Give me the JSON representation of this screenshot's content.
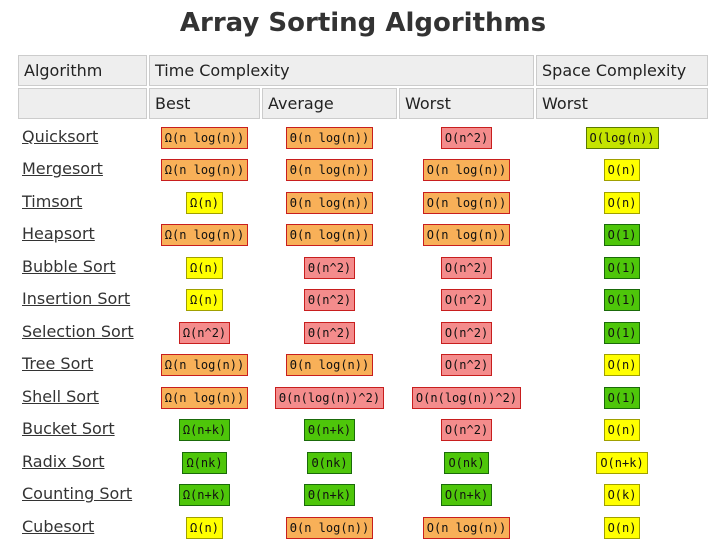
{
  "title": "Array Sorting Algorithms",
  "header": {
    "algorithm": "Algorithm",
    "time": "Time Complexity",
    "space": "Space Complexity",
    "sub": [
      "Best",
      "Average",
      "Worst",
      "Worst"
    ]
  },
  "rows": [
    {
      "name": "Quicksort",
      "cells": [
        {
          "text": "Ω(n log(n))",
          "color": "orange"
        },
        {
          "text": "Θ(n log(n))",
          "color": "orange"
        },
        {
          "text": "O(n^2)",
          "color": "red"
        },
        {
          "text": "O(log(n))",
          "color": "lime"
        }
      ]
    },
    {
      "name": "Mergesort",
      "cells": [
        {
          "text": "Ω(n log(n))",
          "color": "orange"
        },
        {
          "text": "Θ(n log(n))",
          "color": "orange"
        },
        {
          "text": "O(n log(n))",
          "color": "orange"
        },
        {
          "text": "O(n)",
          "color": "yellow"
        }
      ]
    },
    {
      "name": "Timsort",
      "cells": [
        {
          "text": "Ω(n)",
          "color": "yellow"
        },
        {
          "text": "Θ(n log(n))",
          "color": "orange"
        },
        {
          "text": "O(n log(n))",
          "color": "orange"
        },
        {
          "text": "O(n)",
          "color": "yellow"
        }
      ]
    },
    {
      "name": "Heapsort",
      "cells": [
        {
          "text": "Ω(n log(n))",
          "color": "orange"
        },
        {
          "text": "Θ(n log(n))",
          "color": "orange"
        },
        {
          "text": "O(n log(n))",
          "color": "orange"
        },
        {
          "text": "O(1)",
          "color": "green"
        }
      ]
    },
    {
      "name": "Bubble Sort",
      "cells": [
        {
          "text": "Ω(n)",
          "color": "yellow"
        },
        {
          "text": "Θ(n^2)",
          "color": "red"
        },
        {
          "text": "O(n^2)",
          "color": "red"
        },
        {
          "text": "O(1)",
          "color": "green"
        }
      ]
    },
    {
      "name": "Insertion Sort",
      "cells": [
        {
          "text": "Ω(n)",
          "color": "yellow"
        },
        {
          "text": "Θ(n^2)",
          "color": "red"
        },
        {
          "text": "O(n^2)",
          "color": "red"
        },
        {
          "text": "O(1)",
          "color": "green"
        }
      ]
    },
    {
      "name": "Selection Sort",
      "cells": [
        {
          "text": "Ω(n^2)",
          "color": "red"
        },
        {
          "text": "Θ(n^2)",
          "color": "red"
        },
        {
          "text": "O(n^2)",
          "color": "red"
        },
        {
          "text": "O(1)",
          "color": "green"
        }
      ]
    },
    {
      "name": "Tree Sort",
      "cells": [
        {
          "text": "Ω(n log(n))",
          "color": "orange"
        },
        {
          "text": "Θ(n log(n))",
          "color": "orange"
        },
        {
          "text": "O(n^2)",
          "color": "red"
        },
        {
          "text": "O(n)",
          "color": "yellow"
        }
      ]
    },
    {
      "name": "Shell Sort",
      "cells": [
        {
          "text": "Ω(n log(n))",
          "color": "orange"
        },
        {
          "text": "Θ(n(log(n))^2)",
          "color": "red"
        },
        {
          "text": "O(n(log(n))^2)",
          "color": "red"
        },
        {
          "text": "O(1)",
          "color": "green"
        }
      ]
    },
    {
      "name": "Bucket Sort",
      "cells": [
        {
          "text": "Ω(n+k)",
          "color": "green"
        },
        {
          "text": "Θ(n+k)",
          "color": "green"
        },
        {
          "text": "O(n^2)",
          "color": "red"
        },
        {
          "text": "O(n)",
          "color": "yellow"
        }
      ]
    },
    {
      "name": "Radix Sort",
      "cells": [
        {
          "text": "Ω(nk)",
          "color": "green"
        },
        {
          "text": "Θ(nk)",
          "color": "green"
        },
        {
          "text": "O(nk)",
          "color": "green"
        },
        {
          "text": "O(n+k)",
          "color": "yellow"
        }
      ]
    },
    {
      "name": "Counting Sort",
      "cells": [
        {
          "text": "Ω(n+k)",
          "color": "green"
        },
        {
          "text": "Θ(n+k)",
          "color": "green"
        },
        {
          "text": "O(n+k)",
          "color": "green"
        },
        {
          "text": "O(k)",
          "color": "yellow"
        }
      ]
    },
    {
      "name": "Cubesort",
      "cells": [
        {
          "text": "Ω(n)",
          "color": "yellow"
        },
        {
          "text": "Θ(n log(n))",
          "color": "orange"
        },
        {
          "text": "O(n log(n))",
          "color": "orange"
        },
        {
          "text": "O(n)",
          "color": "yellow"
        }
      ]
    }
  ]
}
